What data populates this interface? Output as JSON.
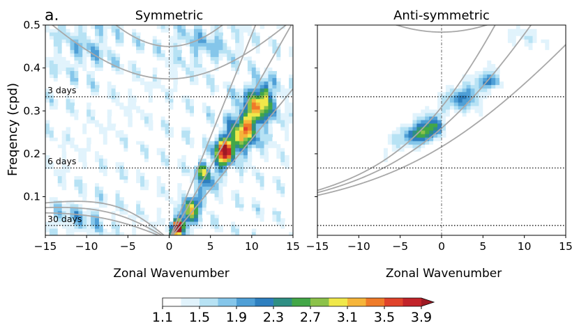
{
  "figure": {
    "panel_letter": "a.",
    "ylabel": "Freqency (cpd)",
    "colorbar": {
      "levels": [
        1.1,
        1.3,
        1.5,
        1.7,
        1.9,
        2.1,
        2.3,
        2.5,
        2.7,
        2.9,
        3.1,
        3.3,
        3.5,
        3.7,
        3.9
      ],
      "tick_labels": [
        "1.1",
        "1.5",
        "1.9",
        "2.3",
        "2.7",
        "3.1",
        "3.5",
        "3.9"
      ],
      "colors": [
        "#ffffff",
        "#e1f3fc",
        "#b7e2f4",
        "#85c6ea",
        "#4f9fd6",
        "#2e7fbf",
        "#2f8f84",
        "#43a747",
        "#8cc24a",
        "#f0e84a",
        "#f6b53a",
        "#ef7b29",
        "#e0432b",
        "#c2242a",
        "#9e1a24"
      ],
      "extend": "max"
    }
  },
  "chart_data": [
    {
      "type": "heatmap",
      "title": "Symmetric",
      "xlabel": "Zonal Wavenumber",
      "ylabel": "Freqency (cpd)",
      "xlim": [
        -15,
        15
      ],
      "ylim": [
        0.01,
        0.5
      ],
      "xticks": [
        -15,
        -10,
        -5,
        0,
        5,
        10,
        15
      ],
      "xtick_labels": [
        "−15",
        "−10",
        "−5",
        "0",
        "5",
        "10",
        "15"
      ],
      "yticks": [
        0.1,
        0.2,
        0.3,
        0.4,
        0.5
      ],
      "ytick_labels": [
        "0.1",
        "0.2",
        "0.3",
        "0.4",
        "0.5"
      ],
      "period_lines": [
        {
          "label": "3 days",
          "frequency": 0.333
        },
        {
          "label": "6 days",
          "frequency": 0.167
        },
        {
          "label": "30 days",
          "frequency": 0.033
        }
      ],
      "peaks": [
        {
          "k": 11,
          "f": 0.32,
          "sk": 1.6,
          "sf": 0.035,
          "a": 1.3
        },
        {
          "k": 9,
          "f": 0.25,
          "sk": 1.4,
          "sf": 0.035,
          "a": 1.3
        },
        {
          "k": 6.5,
          "f": 0.21,
          "sk": 0.8,
          "sf": 0.02,
          "a": 2.3
        },
        {
          "k": 4,
          "f": 0.16,
          "sk": 0.6,
          "sf": 0.015,
          "a": 1.6
        },
        {
          "k": 1,
          "f": 0.03,
          "sk": 0.45,
          "sf": 0.013,
          "a": 2.8
        },
        {
          "k": 2.5,
          "f": 0.07,
          "sk": 0.6,
          "sf": 0.025,
          "a": 1.2
        },
        {
          "k": -10,
          "f": 0.45,
          "sk": 3,
          "sf": 0.05,
          "a": 0.45
        },
        {
          "k": -11,
          "f": 0.05,
          "sk": 3,
          "sf": 0.03,
          "a": 0.5
        },
        {
          "k": 4,
          "f": 0.46,
          "sk": 3,
          "sf": 0.04,
          "a": 0.5
        }
      ],
      "ridges": [
        {
          "k0": 0.5,
          "f0": 0.0,
          "slope": 0.03,
          "width": 1.3,
          "a": 0.7,
          "kmin": 0,
          "kmax": 12
        }
      ],
      "dispersion_curves": [
        {
          "kind": "kelvin",
          "he": 12
        },
        {
          "kind": "kelvin",
          "he": 25
        },
        {
          "kind": "kelvin",
          "he": 50
        },
        {
          "kind": "er",
          "n": 1,
          "he": 12
        },
        {
          "kind": "er",
          "n": 1,
          "he": 25
        },
        {
          "kind": "er",
          "n": 1,
          "he": 50
        },
        {
          "kind": "ig",
          "n": 1,
          "he": 12
        },
        {
          "kind": "ig",
          "n": 1,
          "he": 25
        }
      ]
    },
    {
      "type": "heatmap",
      "title": "Anti-symmetric",
      "xlabel": "Zonal Wavenumber",
      "ylabel": "",
      "xlim": [
        -15,
        15
      ],
      "ylim": [
        0.01,
        0.5
      ],
      "xticks": [
        -15,
        -10,
        -5,
        0,
        5,
        10,
        15
      ],
      "xtick_labels": [
        "−15",
        "−10",
        "−5",
        "0",
        "5",
        "10",
        "15"
      ],
      "yticks": [
        0.1,
        0.2,
        0.3,
        0.4,
        0.5
      ],
      "ytick_labels": [],
      "period_lines": [
        {
          "label": "",
          "frequency": 0.333
        },
        {
          "label": "",
          "frequency": 0.167
        },
        {
          "label": "",
          "frequency": 0.033
        }
      ],
      "peaks": [
        {
          "k": -2.5,
          "f": 0.245,
          "sk": 1.2,
          "sf": 0.015,
          "a": 1.4
        },
        {
          "k": -1,
          "f": 0.265,
          "sk": 0.8,
          "sf": 0.015,
          "a": 1.0
        },
        {
          "k": 3,
          "f": 0.33,
          "sk": 1.5,
          "sf": 0.02,
          "a": 0.7
        },
        {
          "k": 6,
          "f": 0.37,
          "sk": 0.8,
          "sf": 0.012,
          "a": 0.8
        },
        {
          "k": 10,
          "f": 0.47,
          "sk": 2,
          "sf": 0.025,
          "a": 0.35
        }
      ],
      "ridges": [
        {
          "k0": -6,
          "f0": 0.22,
          "slope": 0.014,
          "width": 0.04,
          "a": 0.4,
          "kmin": -7,
          "kmax": 7
        }
      ],
      "dispersion_curves": [
        {
          "kind": "mrg",
          "he": 12
        },
        {
          "kind": "mrg",
          "he": 25
        },
        {
          "kind": "mrg",
          "he": 50
        },
        {
          "kind": "ig",
          "n": 2,
          "he": 12
        },
        {
          "kind": "ig",
          "n": 2,
          "he": 25
        }
      ]
    }
  ]
}
